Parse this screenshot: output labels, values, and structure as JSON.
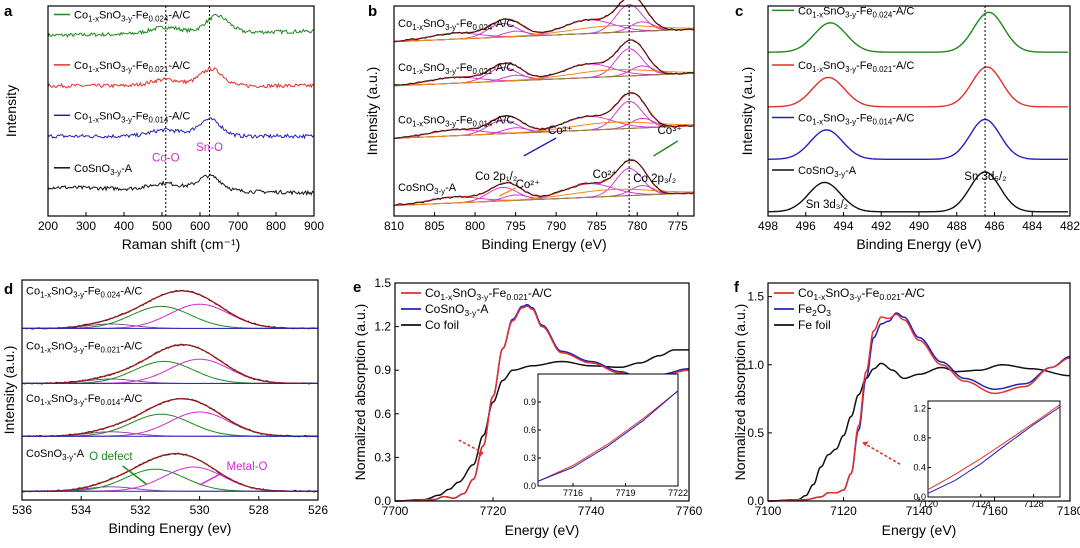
{
  "colors": {
    "green": "#1c8a1c",
    "red": "#e0312c",
    "blue": "#2222bb",
    "black": "#111111",
    "magenta": "#d12bd1",
    "orange": "#f08a1a",
    "olive": "#8a8a2a",
    "purple": "#7d3c98",
    "darkred": "#9b1b1b"
  },
  "chart_data": [
    {
      "panel": "a",
      "type": "line",
      "xlabel": "Raman shift (cm⁻¹)",
      "ylabel": "Intensity",
      "xlim": [
        200,
        900
      ],
      "xticks": [
        200,
        300,
        400,
        500,
        600,
        700,
        800,
        900
      ],
      "ref_lines": [
        510,
        625
      ],
      "annotations": [
        {
          "text": "Co-O",
          "x": 510
        },
        {
          "text": "Sn-O",
          "x": 625
        }
      ],
      "series": [
        {
          "name": "Co1-xSnO3-y-Fe0.024-A/C",
          "color": "green",
          "base": 0.86,
          "peak_x": 645,
          "peak_h": 0.08
        },
        {
          "name": "Co1-xSnO3-y-Fe0.021-A/C",
          "color": "red",
          "base": 0.62,
          "peak_x": 630,
          "peak_h": 0.08
        },
        {
          "name": "Co1-xSnO3-y-Fe0.014-A/C",
          "color": "blue",
          "base": 0.38,
          "peak_x": 625,
          "peak_h": 0.08
        },
        {
          "name": "CoSnO3-y-A",
          "color": "black",
          "base": 0.13,
          "peak_x": 625,
          "peak_h": 0.07
        }
      ]
    },
    {
      "panel": "b",
      "type": "line",
      "xlabel": "Binding Energy (eV)",
      "ylabel": "Intensity (a.u.)",
      "xlim": [
        810,
        773
      ],
      "xticks": [
        810,
        805,
        800,
        795,
        790,
        785,
        780,
        775
      ],
      "ref_lines": [
        781
      ],
      "annotations": [
        "Co³⁺",
        "Co³⁺",
        "Co 2p₁/₂",
        "Co²⁺",
        "Co²⁺",
        "Co 2p₃/₂"
      ],
      "series": [
        {
          "name": "Co1-xSnO3-y-Fe0.024-A/C",
          "main_peak": 781,
          "second_peak": 796.6
        },
        {
          "name": "Co1-xSnO3-y-Fe0.021-A/C",
          "main_peak": 781,
          "second_peak": 796.6
        },
        {
          "name": "Co1-xSnO3-y-Fe0.014-A/C",
          "main_peak": 781,
          "second_peak": 796.6
        },
        {
          "name": "CoSnO3-y-A",
          "main_peak": 781,
          "second_peak": 796.6
        }
      ]
    },
    {
      "panel": "c",
      "type": "line",
      "xlabel": "Binding Energy (eV)",
      "ylabel": "Intensity (a.u.)",
      "xlim": [
        498,
        482
      ],
      "xticks": [
        498,
        496,
        494,
        492,
        490,
        488,
        486,
        484,
        482
      ],
      "ref_lines": [
        486.5
      ],
      "annotations": [
        "Sn 3d₅/₂",
        "Sn 3d₃/₂"
      ],
      "series": [
        {
          "name": "Co1-xSnO3-y-Fe0.024-A/C",
          "color": "green",
          "peaks": [
            494.7,
            486.3
          ]
        },
        {
          "name": "Co1-xSnO3-y-Fe0.021-A/C",
          "color": "red",
          "peaks": [
            494.8,
            486.4
          ]
        },
        {
          "name": "Co1-xSnO3-y-Fe0.014-A/C",
          "color": "blue",
          "peaks": [
            494.9,
            486.5
          ]
        },
        {
          "name": "CoSnO3-y-A",
          "color": "black",
          "peaks": [
            495.0,
            486.5
          ]
        }
      ]
    },
    {
      "panel": "d",
      "type": "line",
      "xlabel": "Binding Energy (ev)",
      "ylabel": "Intensity (a.u.)",
      "xlim": [
        536,
        526
      ],
      "xticks": [
        536,
        534,
        532,
        530,
        528,
        526
      ],
      "annotations": [
        "O defect",
        "Metal-O"
      ],
      "series": [
        {
          "name": "Co1-xSnO3-y-Fe0.024-A/C",
          "o_defect": 531.3,
          "metal_o": 530.0
        },
        {
          "name": "Co1-xSnO3-y-Fe0.021-A/C",
          "o_defect": 531.2,
          "metal_o": 530.0
        },
        {
          "name": "Co1-xSnO3-y-Fe0.014-A/C",
          "o_defect": 531.3,
          "metal_o": 530.0
        },
        {
          "name": "CoSnO3-y-A",
          "o_defect": 531.5,
          "metal_o": 530.2
        }
      ]
    },
    {
      "panel": "e",
      "type": "line",
      "xlabel": "Energy (eV)",
      "ylabel": "Normalized absorption (a.u.)",
      "xlim": [
        7700,
        7760
      ],
      "ylim": [
        0,
        1.5
      ],
      "xticks": [
        7700,
        7720,
        7740,
        7760
      ],
      "yticks": [
        0,
        0.3,
        0.6,
        0.9,
        1.2,
        1.5
      ],
      "yticklabels": [
        "0.0",
        "0.3",
        "0.6",
        "0.9",
        "1.2",
        "1.5"
      ],
      "series": [
        {
          "name": "Co1-xSnO3-y-Fe0.021-A/C",
          "color": "red",
          "x": [
            7700,
            7708,
            7710,
            7712,
            7714,
            7716,
            7718,
            7720,
            7722,
            7724,
            7726,
            7727,
            7728,
            7730,
            7734,
            7740,
            7746,
            7750,
            7754,
            7760
          ],
          "y": [
            0,
            0.01,
            0.03,
            0.02,
            0.05,
            0.15,
            0.38,
            0.72,
            1.05,
            1.24,
            1.33,
            1.34,
            1.32,
            1.2,
            1.02,
            0.95,
            0.88,
            0.84,
            0.86,
            0.9
          ]
        },
        {
          "name": "CoSnO3-y-A",
          "color": "blue",
          "x": [
            7700,
            7708,
            7710,
            7712,
            7714,
            7716,
            7718,
            7720,
            7722,
            7724,
            7726,
            7727,
            7728,
            7730,
            7734,
            7740,
            7746,
            7750,
            7754,
            7760
          ],
          "y": [
            0,
            0.01,
            0.03,
            0.02,
            0.05,
            0.15,
            0.38,
            0.72,
            1.05,
            1.25,
            1.34,
            1.35,
            1.33,
            1.21,
            1.03,
            0.96,
            0.89,
            0.85,
            0.87,
            0.91
          ]
        },
        {
          "name": "Co foil",
          "color": "black",
          "x": [
            7700,
            7706,
            7709,
            7711,
            7713,
            7716,
            7718,
            7720,
            7722,
            7724,
            7728,
            7734,
            7740,
            7746,
            7750,
            7754,
            7757,
            7760
          ],
          "y": [
            0,
            0.01,
            0.04,
            0.08,
            0.13,
            0.25,
            0.45,
            0.68,
            0.83,
            0.9,
            0.93,
            0.96,
            0.93,
            0.92,
            0.95,
            1.0,
            1.04,
            1.04
          ]
        }
      ],
      "inset": {
        "xlim": [
          7714,
          7722
        ],
        "ylim": [
          0,
          1.2
        ],
        "xticks": [
          7716,
          7719,
          7722
        ],
        "yticks": [
          0,
          0.3,
          0.6,
          0.9
        ],
        "yticklabels": [
          "0.0",
          "0.3",
          "0.6",
          "0.9"
        ],
        "series": [
          {
            "color": "red",
            "x": [
              7714,
              7716,
              7718,
              7720,
              7722
            ],
            "y": [
              0.05,
              0.22,
              0.45,
              0.72,
              1.02
            ]
          },
          {
            "color": "blue",
            "x": [
              7714,
              7716,
              7718,
              7720,
              7722
            ],
            "y": [
              0.05,
              0.2,
              0.43,
              0.7,
              1.02
            ]
          }
        ]
      }
    },
    {
      "panel": "f",
      "type": "line",
      "xlabel": "Energy (eV)",
      "ylabel": "Normalized absorption (a.u.)",
      "xlim": [
        7100,
        7180
      ],
      "ylim": [
        0,
        1.6
      ],
      "xticks": [
        7100,
        7120,
        7140,
        7160,
        7180
      ],
      "yticks": [
        0,
        0.5,
        1.0,
        1.5
      ],
      "yticklabels": [
        "0.0",
        "0.5",
        "1.0",
        "1.5"
      ],
      "series": [
        {
          "name": "Co1-xSnO3-y-Fe0.021-A/C",
          "color": "red",
          "x": [
            7100,
            7110,
            7114,
            7116,
            7118,
            7120,
            7122,
            7124,
            7126,
            7128,
            7130,
            7132,
            7134,
            7136,
            7140,
            7146,
            7152,
            7160,
            7168,
            7175,
            7180
          ],
          "y": [
            0,
            0.01,
            0.03,
            0.06,
            0.06,
            0.08,
            0.2,
            0.55,
            0.95,
            1.25,
            1.35,
            1.34,
            1.37,
            1.33,
            1.18,
            1.0,
            0.88,
            0.79,
            0.84,
            0.98,
            1.05
          ]
        },
        {
          "name": "Fe2O3",
          "color": "blue",
          "x": [
            7100,
            7110,
            7114,
            7116,
            7118,
            7120,
            7122,
            7124,
            7126,
            7128,
            7130,
            7132,
            7134,
            7136,
            7140,
            7146,
            7152,
            7160,
            7168,
            7175,
            7180
          ],
          "y": [
            0,
            0.01,
            0.03,
            0.06,
            0.06,
            0.08,
            0.2,
            0.52,
            0.9,
            1.2,
            1.3,
            1.32,
            1.38,
            1.35,
            1.2,
            1.02,
            0.9,
            0.82,
            0.86,
            0.98,
            1.06
          ]
        },
        {
          "name": "Fe foil",
          "color": "black",
          "x": [
            7100,
            7108,
            7110,
            7112,
            7114,
            7116,
            7118,
            7120,
            7122,
            7124,
            7126,
            7128,
            7130,
            7133,
            7136,
            7140,
            7146,
            7150,
            7156,
            7162,
            7170,
            7180
          ],
          "y": [
            0,
            0.01,
            0.04,
            0.12,
            0.25,
            0.34,
            0.38,
            0.48,
            0.62,
            0.78,
            0.9,
            0.97,
            1.01,
            0.96,
            0.9,
            0.93,
            0.98,
            0.95,
            0.96,
            1.0,
            0.97,
            0.92
          ]
        }
      ],
      "inset": {
        "xlim": [
          7120,
          7130
        ],
        "ylim": [
          0,
          1.3
        ],
        "xticks": [
          7120,
          7124,
          7128
        ],
        "yticks": [
          0,
          0.4,
          0.8,
          1.2
        ],
        "yticklabels": [
          "0.0",
          "0.4",
          "0.8",
          "1.2"
        ],
        "series": [
          {
            "color": "red",
            "x": [
              7120,
              7122,
              7124,
              7126,
              7128,
              7130
            ],
            "y": [
              0.1,
              0.3,
              0.52,
              0.76,
              1.0,
              1.25
            ]
          },
          {
            "color": "blue",
            "x": [
              7120,
              7122,
              7124,
              7126,
              7128,
              7130
            ],
            "y": [
              0.05,
              0.22,
              0.45,
              0.72,
              0.98,
              1.22
            ]
          }
        ]
      }
    }
  ]
}
